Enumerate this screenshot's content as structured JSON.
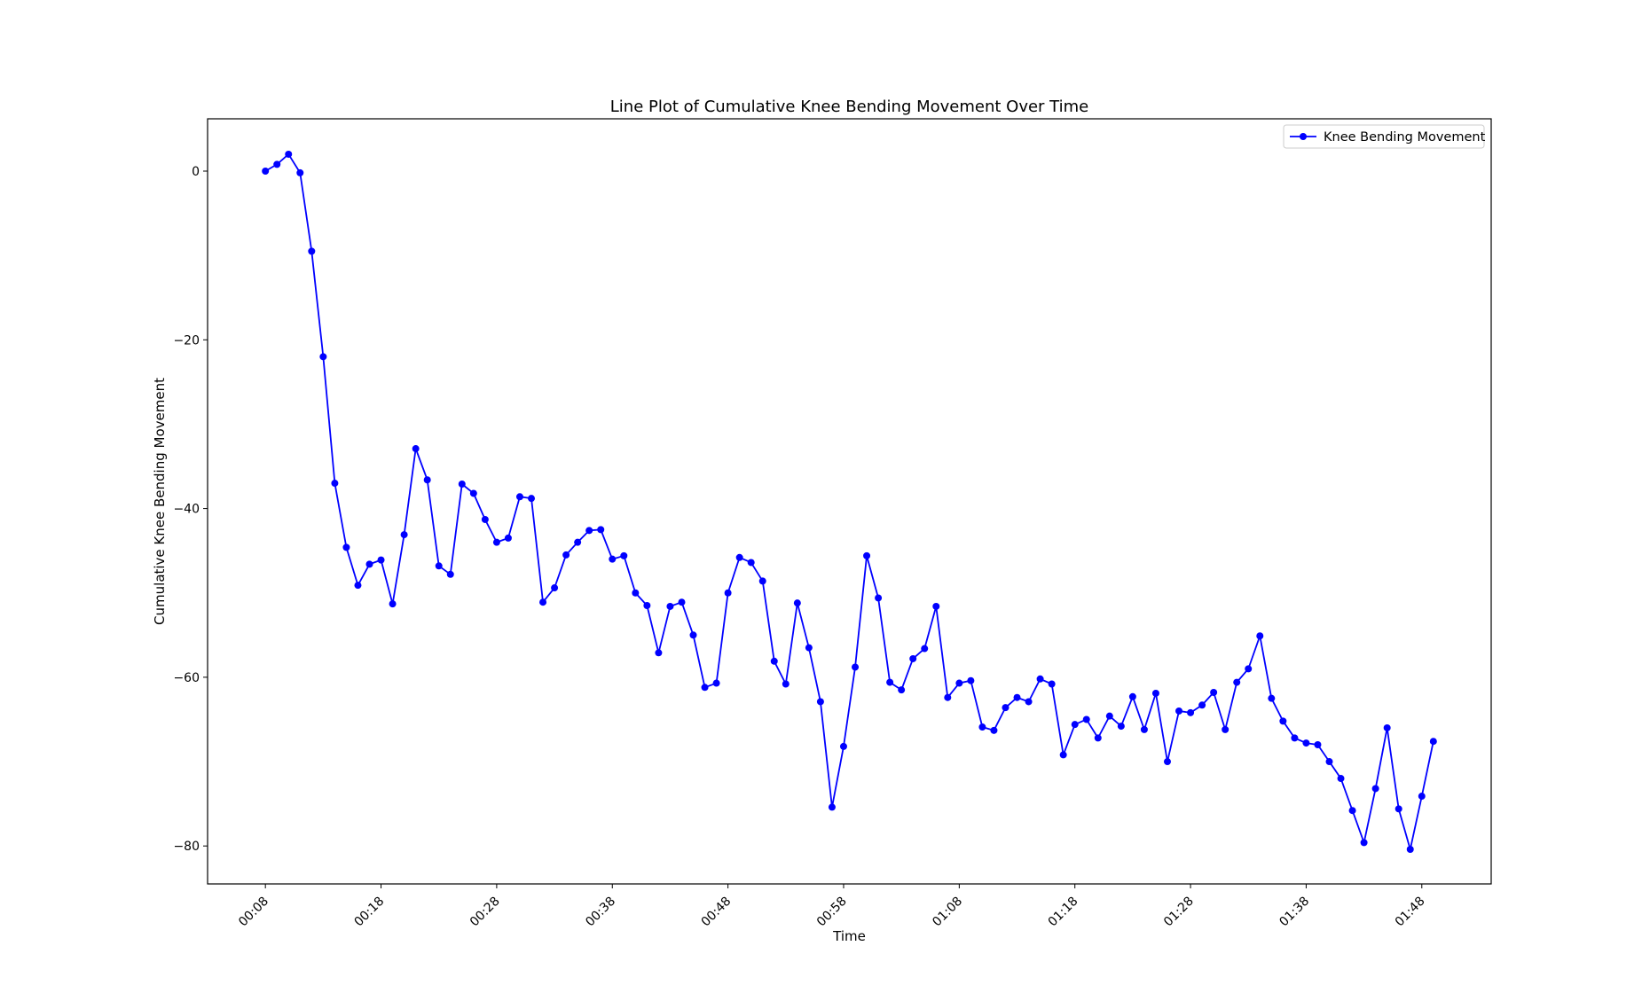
{
  "chart_data": {
    "type": "line",
    "title": "Line Plot of Cumulative Knee Bending Movement Over Time",
    "xlabel": "Time",
    "ylabel": "Cumulative Knee Bending Movement",
    "x_start_seconds": 8,
    "x_step_seconds": 1,
    "x_ticks": [
      "00:08",
      "00:18",
      "00:28",
      "00:38",
      "00:48",
      "00:58",
      "01:08",
      "01:18",
      "01:28",
      "01:38",
      "01:48"
    ],
    "y_ticks": [
      "0",
      "−20",
      "−40",
      "−60",
      "−80"
    ],
    "y_tick_values": [
      0,
      -20,
      -40,
      -60,
      -80
    ],
    "xlim": [
      "00:03",
      "01:54"
    ],
    "ylim": [
      -84.5,
      6.2
    ],
    "grid": false,
    "legend_position": "top-right",
    "series": [
      {
        "name": "Knee Bending Movement",
        "color": "#0000ff",
        "marker": "circle",
        "values": [
          0.0,
          0.8,
          2.0,
          -0.2,
          -9.5,
          -22.0,
          -37.0,
          -44.6,
          -49.1,
          -46.6,
          -46.1,
          -51.3,
          -43.1,
          -32.9,
          -36.6,
          -46.8,
          -47.8,
          -37.1,
          -38.2,
          -41.3,
          -44.0,
          -43.5,
          -38.6,
          -38.8,
          -51.1,
          -49.4,
          -45.5,
          -44.0,
          -42.6,
          -42.5,
          -46.0,
          -45.6,
          -50.0,
          -51.5,
          -57.1,
          -51.6,
          -51.1,
          -55.0,
          -61.2,
          -60.7,
          -50.0,
          -45.8,
          -46.4,
          -48.6,
          -58.1,
          -60.8,
          -51.2,
          -56.5,
          -62.9,
          -75.4,
          -68.2,
          -58.8,
          -45.6,
          -50.6,
          -60.6,
          -61.5,
          -57.8,
          -56.6,
          -51.6,
          -62.4,
          -60.7,
          -60.4,
          -65.9,
          -66.3,
          -63.6,
          -62.4,
          -62.9,
          -60.2,
          -60.8,
          -69.2,
          -65.6,
          -65.0,
          -67.2,
          -64.6,
          -65.8,
          -62.3,
          -66.2,
          -61.9,
          -70.0,
          -64.0,
          -64.2,
          -63.3,
          -61.8,
          -66.2,
          -60.6,
          -59.0,
          -55.1,
          -62.5,
          -65.2,
          -67.2,
          -67.8,
          -68.0,
          -70.0,
          -72.0,
          -75.8,
          -79.6,
          -73.2,
          -66.0,
          -75.6,
          -80.4,
          -74.1,
          -67.6
        ]
      }
    ]
  }
}
